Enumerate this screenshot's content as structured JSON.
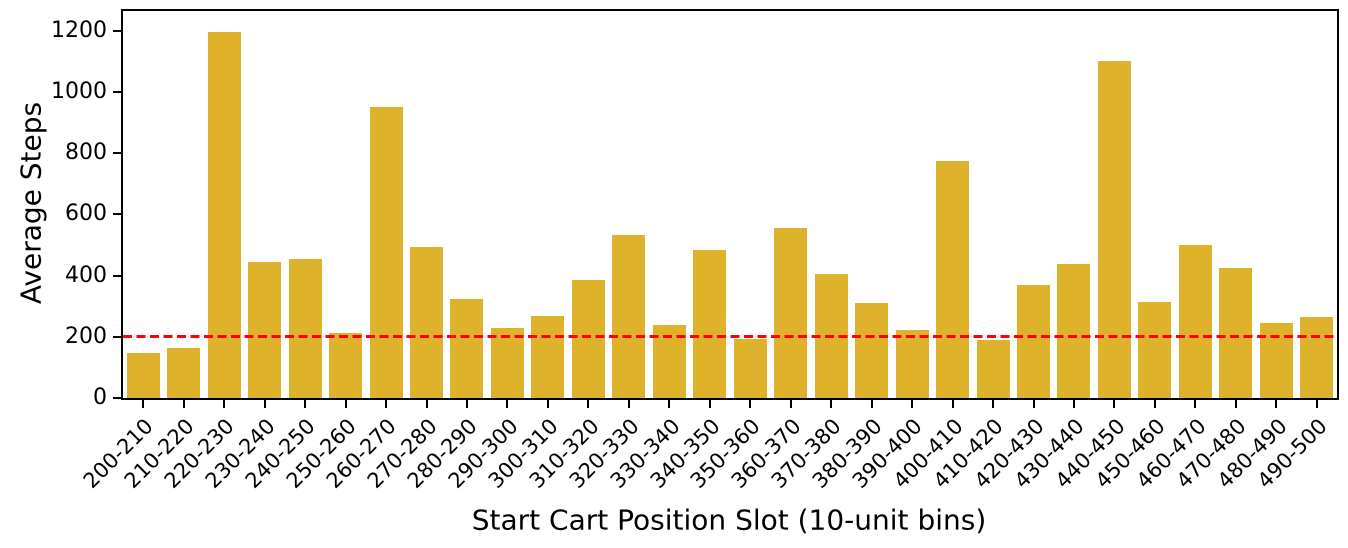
{
  "chart_data": {
    "type": "bar",
    "title": "",
    "xlabel": "Start Cart Position Slot (10-unit bins)",
    "ylabel": "Average Steps",
    "categories": [
      "200-210",
      "210-220",
      "220-230",
      "230-240",
      "240-250",
      "250-260",
      "260-270",
      "270-280",
      "280-290",
      "290-300",
      "300-310",
      "310-320",
      "320-330",
      "330-340",
      "340-350",
      "350-360",
      "360-370",
      "370-380",
      "380-390",
      "390-400",
      "400-410",
      "410-420",
      "420-430",
      "430-440",
      "440-450",
      "450-460",
      "460-470",
      "470-480",
      "480-490",
      "490-500"
    ],
    "values": [
      148,
      165,
      1195,
      445,
      455,
      212,
      950,
      493,
      325,
      230,
      268,
      385,
      533,
      240,
      485,
      192,
      555,
      407,
      310,
      222,
      775,
      190,
      370,
      438,
      1100,
      315,
      500,
      425,
      246,
      266
    ],
    "yticks": [
      0,
      200,
      400,
      600,
      800,
      1000,
      1200
    ],
    "ylim": [
      0,
      1265
    ],
    "grid": false,
    "legend_position": "none",
    "bar_color": "#DFB22B",
    "axis_color": "#000000",
    "reference_line": {
      "value": 200,
      "color": "#FF0000",
      "style": "dashed"
    }
  }
}
